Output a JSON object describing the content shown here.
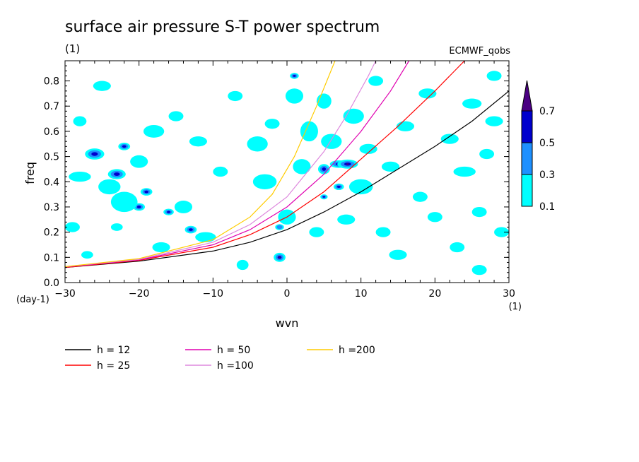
{
  "chart_data": {
    "type": "heatmap",
    "title": "surface air pressure S-T power spectrum",
    "units_label": "(1)",
    "source_label": "ECMWF_qobs",
    "xlabel": "wvn",
    "ylabel": "freq",
    "y_unit_label": "(day-1)",
    "x_unit_label": "(1)",
    "xlim": [
      -30,
      30
    ],
    "ylim": [
      0,
      0.88
    ],
    "x_ticks": [
      -30,
      -20,
      -10,
      0,
      10,
      20,
      30
    ],
    "y_ticks": [
      0.0,
      0.1,
      0.2,
      0.3,
      0.4,
      0.5,
      0.6,
      0.7,
      0.8
    ],
    "colorbar": {
      "levels": [
        0.1,
        0.3,
        0.5,
        0.7
      ],
      "colors": [
        "#00ffff",
        "#1e90ff",
        "#0000cd",
        "#4b0082"
      ],
      "extend": "max"
    },
    "dispersion_curves": [
      {
        "name": "h = 12",
        "color": "#000000",
        "points": [
          [
            -30,
            0.06
          ],
          [
            -20,
            0.085
          ],
          [
            -10,
            0.125
          ],
          [
            -5,
            0.16
          ],
          [
            0,
            0.21
          ],
          [
            5,
            0.28
          ],
          [
            10,
            0.36
          ],
          [
            15,
            0.45
          ],
          [
            20,
            0.54
          ],
          [
            25,
            0.64
          ],
          [
            30,
            0.76
          ]
        ]
      },
      {
        "name": "h = 25",
        "color": "#ff0000",
        "points": [
          [
            -30,
            0.06
          ],
          [
            -20,
            0.088
          ],
          [
            -10,
            0.14
          ],
          [
            -5,
            0.19
          ],
          [
            0,
            0.26
          ],
          [
            5,
            0.36
          ],
          [
            10,
            0.49
          ],
          [
            15,
            0.62
          ],
          [
            20,
            0.76
          ],
          [
            24,
            0.88
          ]
        ]
      },
      {
        "name": "h = 50",
        "color": "#e000b0",
        "points": [
          [
            -30,
            0.062
          ],
          [
            -20,
            0.09
          ],
          [
            -10,
            0.15
          ],
          [
            -5,
            0.21
          ],
          [
            0,
            0.3
          ],
          [
            5,
            0.43
          ],
          [
            10,
            0.6
          ],
          [
            14,
            0.76
          ],
          [
            16.5,
            0.88
          ]
        ]
      },
      {
        "name": "h =100",
        "color": "#dd88dd",
        "points": [
          [
            -30,
            0.063
          ],
          [
            -20,
            0.092
          ],
          [
            -10,
            0.16
          ],
          [
            -5,
            0.23
          ],
          [
            0,
            0.34
          ],
          [
            5,
            0.52
          ],
          [
            8,
            0.66
          ],
          [
            11,
            0.82
          ],
          [
            12,
            0.88
          ]
        ]
      },
      {
        "name": "h =200",
        "color": "#ffcc00",
        "points": [
          [
            -30,
            0.063
          ],
          [
            -20,
            0.095
          ],
          [
            -10,
            0.17
          ],
          [
            -5,
            0.26
          ],
          [
            -2,
            0.35
          ],
          [
            1,
            0.5
          ],
          [
            4,
            0.7
          ],
          [
            6.5,
            0.88
          ]
        ]
      }
    ],
    "blobs": [
      [
        -26,
        0.51,
        1.3,
        0.022,
        2
      ],
      [
        -23,
        0.43,
        1.2,
        0.02,
        2
      ],
      [
        -22,
        0.54,
        0.8,
        0.015,
        2
      ],
      [
        -20,
        0.3,
        0.8,
        0.015,
        2
      ],
      [
        -19,
        0.36,
        0.8,
        0.015,
        2
      ],
      [
        -16,
        0.28,
        0.7,
        0.013,
        2
      ],
      [
        -13,
        0.21,
        0.8,
        0.015,
        2
      ],
      [
        -1,
        0.1,
        0.8,
        0.018,
        3
      ],
      [
        -1,
        0.22,
        0.6,
        0.012,
        1
      ],
      [
        1,
        0.82,
        0.6,
        0.012,
        2
      ],
      [
        5,
        0.45,
        0.8,
        0.02,
        2
      ],
      [
        5,
        0.34,
        0.5,
        0.01,
        2
      ],
      [
        7,
        0.47,
        1.2,
        0.015,
        2
      ],
      [
        8.2,
        0.47,
        1.4,
        0.018,
        3
      ],
      [
        7,
        0.38,
        0.7,
        0.013,
        2
      ],
      [
        -28,
        0.42,
        1.5,
        0.02,
        0
      ],
      [
        -28,
        0.64,
        0.9,
        0.02,
        0
      ],
      [
        -25,
        0.78,
        1.2,
        0.02,
        0
      ],
      [
        -24,
        0.38,
        1.5,
        0.03,
        0
      ],
      [
        -22,
        0.32,
        1.8,
        0.04,
        0
      ],
      [
        -20,
        0.48,
        1.2,
        0.025,
        0
      ],
      [
        -18,
        0.6,
        1.4,
        0.025,
        0
      ],
      [
        -17,
        0.14,
        1.2,
        0.02,
        0
      ],
      [
        -15,
        0.66,
        1.0,
        0.02,
        0
      ],
      [
        -14,
        0.3,
        1.2,
        0.025,
        0
      ],
      [
        -12,
        0.56,
        1.2,
        0.02,
        0
      ],
      [
        -11,
        0.18,
        1.4,
        0.02,
        0
      ],
      [
        -9,
        0.44,
        1.0,
        0.02,
        0
      ],
      [
        -7,
        0.74,
        1.0,
        0.02,
        0
      ],
      [
        -6,
        0.07,
        0.8,
        0.02,
        0
      ],
      [
        -4,
        0.55,
        1.4,
        0.03,
        0
      ],
      [
        -3,
        0.4,
        1.6,
        0.03,
        0
      ],
      [
        -2,
        0.63,
        1.0,
        0.02,
        0
      ],
      [
        0,
        0.26,
        1.2,
        0.03,
        0
      ],
      [
        1,
        0.74,
        1.2,
        0.03,
        0
      ],
      [
        2,
        0.46,
        1.2,
        0.03,
        0
      ],
      [
        3,
        0.6,
        1.2,
        0.04,
        0
      ],
      [
        4,
        0.2,
        1.0,
        0.02,
        0
      ],
      [
        5,
        0.72,
        1.0,
        0.03,
        0
      ],
      [
        6,
        0.56,
        1.4,
        0.03,
        0
      ],
      [
        8,
        0.25,
        1.2,
        0.02,
        0
      ],
      [
        9,
        0.66,
        1.4,
        0.03,
        0
      ],
      [
        10,
        0.38,
        1.6,
        0.03,
        0
      ],
      [
        11,
        0.53,
        1.2,
        0.02,
        0
      ],
      [
        12,
        0.8,
        1.0,
        0.02,
        0
      ],
      [
        13,
        0.2,
        1.0,
        0.02,
        0
      ],
      [
        14,
        0.46,
        1.2,
        0.02,
        0
      ],
      [
        15,
        0.11,
        1.2,
        0.02,
        0
      ],
      [
        16,
        0.62,
        1.2,
        0.02,
        0
      ],
      [
        18,
        0.34,
        1.0,
        0.02,
        0
      ],
      [
        19,
        0.75,
        1.2,
        0.02,
        0
      ],
      [
        20,
        0.26,
        1.0,
        0.02,
        0
      ],
      [
        22,
        0.57,
        1.2,
        0.02,
        0
      ],
      [
        23,
        0.14,
        1.0,
        0.02,
        0
      ],
      [
        24,
        0.44,
        1.5,
        0.02,
        0
      ],
      [
        25,
        0.71,
        1.3,
        0.02,
        0
      ],
      [
        26,
        0.28,
        1.0,
        0.02,
        0
      ],
      [
        27,
        0.51,
        1.0,
        0.02,
        0
      ],
      [
        28,
        0.64,
        1.2,
        0.02,
        0
      ],
      [
        29,
        0.2,
        1.0,
        0.02,
        0
      ],
      [
        26,
        0.05,
        1.0,
        0.02,
        0
      ],
      [
        28,
        0.82,
        1.0,
        0.02,
        0
      ],
      [
        -29,
        0.22,
        1.0,
        0.02,
        0
      ],
      [
        -27,
        0.11,
        0.8,
        0.015,
        0
      ],
      [
        -23,
        0.22,
        0.8,
        0.015,
        0
      ]
    ]
  }
}
